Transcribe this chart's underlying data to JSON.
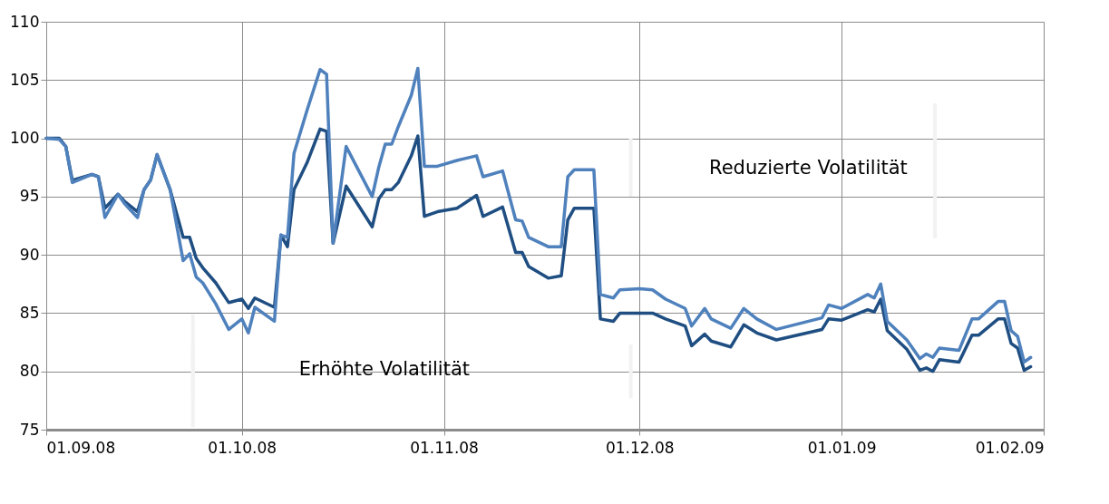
{
  "chart_data": {
    "type": "line",
    "x": [
      "2008-09-01",
      "2008-09-03",
      "2008-09-04",
      "2008-09-05",
      "2008-09-08",
      "2008-09-09",
      "2008-09-10",
      "2008-09-12",
      "2008-09-13",
      "2008-09-15",
      "2008-09-16",
      "2008-09-17",
      "2008-09-18",
      "2008-09-20",
      "2008-09-22",
      "2008-09-23",
      "2008-09-24",
      "2008-09-25",
      "2008-09-27",
      "2008-09-29",
      "2008-10-01",
      "2008-10-02",
      "2008-10-03",
      "2008-10-06",
      "2008-10-07",
      "2008-10-08",
      "2008-10-09",
      "2008-10-11",
      "2008-10-13",
      "2008-10-14",
      "2008-10-15",
      "2008-10-17",
      "2008-10-21",
      "2008-10-22",
      "2008-10-23",
      "2008-10-24",
      "2008-10-25",
      "2008-10-27",
      "2008-10-28",
      "2008-10-29",
      "2008-10-31",
      "2008-11-03",
      "2008-11-06",
      "2008-11-07",
      "2008-11-10",
      "2008-11-12",
      "2008-11-13",
      "2008-11-14",
      "2008-11-17",
      "2008-11-19",
      "2008-11-20",
      "2008-11-21",
      "2008-11-24",
      "2008-11-25",
      "2008-11-27",
      "2008-11-28",
      "2008-12-01",
      "2008-12-03",
      "2008-12-05",
      "2008-12-08",
      "2008-12-09",
      "2008-12-11",
      "2008-12-12",
      "2008-12-15",
      "2008-12-17",
      "2008-12-19",
      "2008-12-22",
      "2008-12-29",
      "2008-12-30",
      "2009-01-01",
      "2009-01-05",
      "2009-01-06",
      "2009-01-07",
      "2009-01-08",
      "2009-01-11",
      "2009-01-13",
      "2009-01-14",
      "2009-01-15",
      "2009-01-16",
      "2009-01-19",
      "2009-01-21",
      "2009-01-22",
      "2009-01-25",
      "2009-01-26",
      "2009-01-27",
      "2009-01-28",
      "2009-01-29",
      "2009-01-30"
    ],
    "series": [
      {
        "color": "#1f4e82",
        "values": [
          100.0,
          100.0,
          99.3,
          96.4,
          96.9,
          96.7,
          94.0,
          95.2,
          94.6,
          93.7,
          95.6,
          96.4,
          98.6,
          95.6,
          91.5,
          91.5,
          89.7,
          88.9,
          87.6,
          85.9,
          86.2,
          85.4,
          86.3,
          85.5,
          91.7,
          90.7,
          95.6,
          97.9,
          100.8,
          100.6,
          91.0,
          95.9,
          92.4,
          94.8,
          95.6,
          95.6,
          96.2,
          98.5,
          100.2,
          93.3,
          93.7,
          94.0,
          95.1,
          93.3,
          94.1,
          90.2,
          90.2,
          89.0,
          88.0,
          88.2,
          93.0,
          94.0,
          94.0,
          84.5,
          84.3,
          85.0,
          85.0,
          85.0,
          84.5,
          83.9,
          82.2,
          83.2,
          82.6,
          82.1,
          84.0,
          83.3,
          82.7,
          83.6,
          84.5,
          84.4,
          85.3,
          85.1,
          86.2,
          83.5,
          81.9,
          80.1,
          80.3,
          80.0,
          81.0,
          80.8,
          83.1,
          83.1,
          84.5,
          84.5,
          82.4,
          82.0,
          80.1,
          80.4
        ]
      },
      {
        "color": "#4f81bd",
        "values": [
          100.0,
          99.9,
          99.3,
          96.2,
          96.9,
          96.7,
          93.2,
          95.2,
          94.4,
          93.2,
          95.6,
          96.4,
          98.6,
          95.6,
          89.5,
          90.1,
          88.1,
          87.6,
          85.8,
          83.6,
          84.5,
          83.3,
          85.5,
          84.3,
          91.7,
          91.5,
          98.7,
          102.4,
          105.9,
          105.5,
          91.0,
          99.3,
          95.0,
          97.5,
          99.5,
          99.5,
          101.0,
          103.7,
          106.0,
          97.6,
          97.6,
          98.1,
          98.5,
          96.7,
          97.2,
          93.0,
          92.9,
          91.5,
          90.7,
          90.7,
          96.7,
          97.3,
          97.3,
          86.6,
          86.3,
          87.0,
          87.1,
          87.0,
          86.2,
          85.4,
          83.9,
          85.4,
          84.5,
          83.7,
          85.4,
          84.5,
          83.6,
          84.6,
          85.7,
          85.4,
          86.6,
          86.3,
          87.5,
          84.3,
          82.7,
          81.1,
          81.5,
          81.2,
          82.0,
          81.8,
          84.5,
          84.5,
          86.0,
          86.0,
          83.5,
          83.0,
          80.8,
          81.2
        ]
      }
    ],
    "xlim": [
      "2008-09-01",
      "2009-02-01"
    ],
    "xticks": [
      {
        "value": "2008-09-01",
        "label": "01.09.08"
      },
      {
        "value": "2008-10-01",
        "label": "01.10.08"
      },
      {
        "value": "2008-11-01",
        "label": "01.11.08"
      },
      {
        "value": "2008-12-01",
        "label": "01.12.08"
      },
      {
        "value": "2009-01-01",
        "label": "01.01.09"
      },
      {
        "value": "2009-02-01",
        "label": "01.02.09"
      }
    ],
    "ylim": [
      75,
      110
    ],
    "yticks": [
      75,
      80,
      85,
      90,
      95,
      100,
      105,
      110
    ],
    "grid": true,
    "annotations": [
      "Reduzierte Volatilität",
      "Erhöhte Volatilität"
    ]
  }
}
